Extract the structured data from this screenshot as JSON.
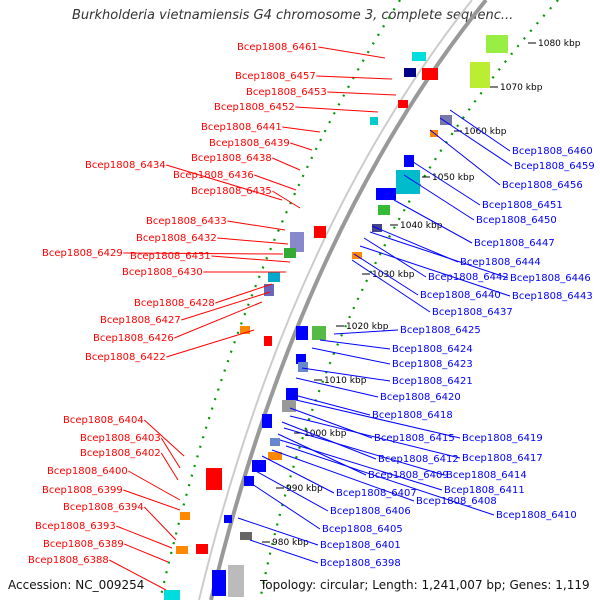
{
  "title": "Burkholderia vietnamiensis G4 chromosome 3, complete sequenc...",
  "footer": {
    "accession": "Accession: NC_009254",
    "topology": "Topology: circular; Length: 1,241,007 bp; Genes: 1,119"
  },
  "colors": {
    "forward": "#ff0000",
    "reverse": "#0000ff",
    "backbone": "#999999",
    "tick_dots": "#009900"
  },
  "ticks": [
    "1080 kbp",
    "1070 kbp",
    "1060 kbp",
    "1050 kbp",
    "1040 kbp",
    "1030 kbp",
    "1020 kbp",
    "1010 kbp",
    "1000 kbp",
    "990 kbp",
    "980 kbp"
  ],
  "left_labels": [
    "Bcep1808_6461",
    "Bcep1808_6457",
    "Bcep1808_6453",
    "Bcep1808_6452",
    "Bcep1808_6441",
    "Bcep1808_6439",
    "Bcep1808_6438",
    "Bcep1808_6434",
    "Bcep1808_6436",
    "Bcep1808_6435",
    "Bcep1808_6433",
    "Bcep1808_6432",
    "Bcep1808_6429",
    "Bcep1808_6431",
    "Bcep1808_6430",
    "Bcep1808_6428",
    "Bcep1808_6427",
    "Bcep1808_6426",
    "Bcep1808_6422",
    "Bcep1808_6404",
    "Bcep1808_6403",
    "Bcep1808_6402",
    "Bcep1808_6400",
    "Bcep1808_6399",
    "Bcep1808_6394",
    "Bcep1808_6393",
    "Bcep1808_6389",
    "Bcep1808_6388"
  ],
  "right_labels": [
    "Bcep1808_6460",
    "Bcep1808_6459",
    "Bcep1808_6456",
    "Bcep1808_6451",
    "Bcep1808_6450",
    "Bcep1808_6447",
    "Bcep1808_6444",
    "Bcep1808_6442",
    "Bcep1808_6446",
    "Bcep1808_6440",
    "Bcep1808_6443",
    "Bcep1808_6437",
    "Bcep1808_6425",
    "Bcep1808_6424",
    "Bcep1808_6423",
    "Bcep1808_6421",
    "Bcep1808_6420",
    "Bcep1808_6418",
    "Bcep1808_6415",
    "Bcep1808_6419",
    "Bcep1808_6412",
    "Bcep1808_6417",
    "Bcep1808_6409",
    "Bcep1808_6414",
    "Bcep1808_6411",
    "Bcep1808_6407",
    "Bcep1808_6408",
    "Bcep1808_6406",
    "Bcep1808_6410",
    "Bcep1808_6405",
    "Bcep1808_6401",
    "Bcep1808_6398"
  ]
}
